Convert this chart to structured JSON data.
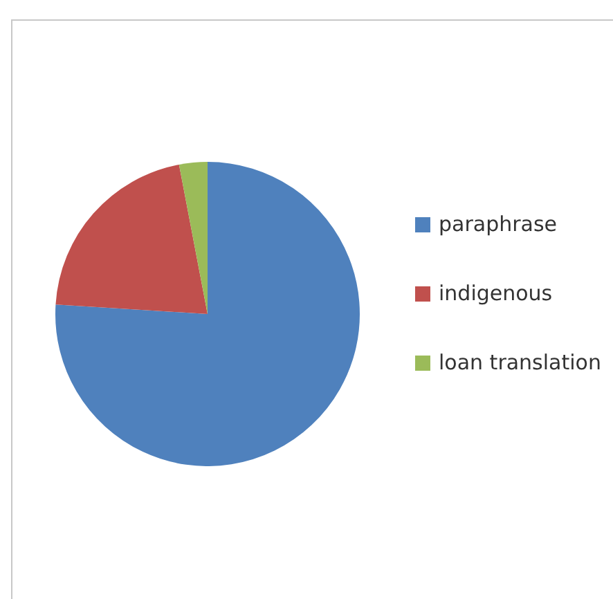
{
  "chart_data": {
    "type": "pie",
    "categories": [
      "paraphrase",
      "indigenous",
      "loan translation"
    ],
    "values": [
      76,
      21,
      3
    ],
    "colors": [
      "#4f81bd",
      "#c0504d",
      "#9bbb59"
    ],
    "legend": "right"
  }
}
